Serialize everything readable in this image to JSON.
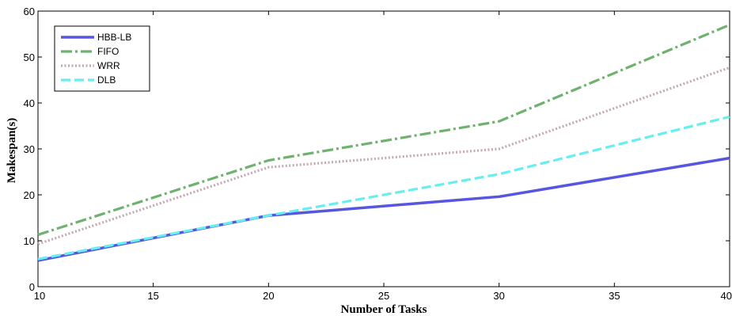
{
  "chart_data": {
    "type": "line",
    "title": "",
    "xlabel": "Number of Tasks",
    "ylabel": "Makespan(s)",
    "x": [
      10,
      20,
      30,
      40
    ],
    "xlim": [
      10,
      40
    ],
    "ylim": [
      0,
      60
    ],
    "xticks": [
      10,
      15,
      20,
      25,
      30,
      35,
      40
    ],
    "yticks": [
      0,
      10,
      20,
      30,
      40,
      50,
      60
    ],
    "grid": false,
    "legend_position": "top-left",
    "series": [
      {
        "name": "HBB-LB",
        "values": [
          5.7,
          15.5,
          19.6,
          28.0
        ],
        "color": "#5656e0",
        "style": "solid"
      },
      {
        "name": "FIFO",
        "values": [
          11.3,
          27.5,
          36.0,
          57.0
        ],
        "color": "#6fb26f",
        "style": "dashdot"
      },
      {
        "name": "WRR",
        "values": [
          9.3,
          26.0,
          30.0,
          47.7
        ],
        "color": "#c4a8b4",
        "style": "dotted"
      },
      {
        "name": "DLB",
        "values": [
          6.0,
          15.5,
          24.5,
          37.0
        ],
        "color": "#66eef0",
        "style": "dashed"
      }
    ]
  }
}
